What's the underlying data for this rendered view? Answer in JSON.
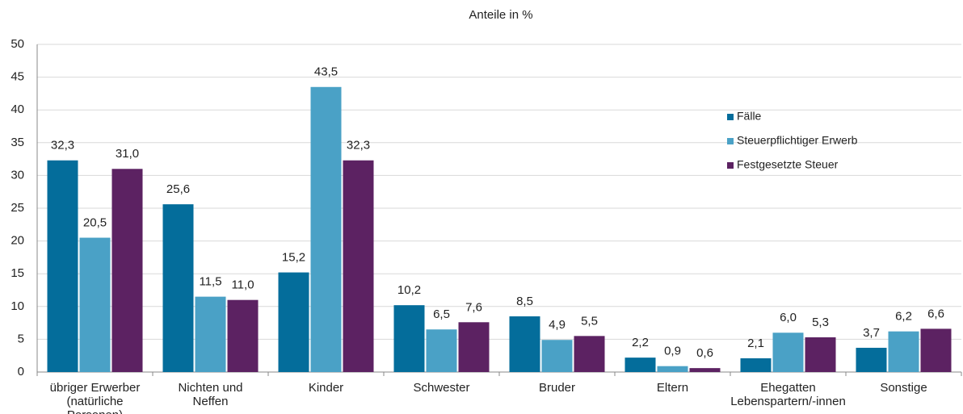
{
  "chart_data": {
    "type": "bar",
    "title": "Anteile in %",
    "categories": [
      "übriger Erwerber\n(natürliche Personen)",
      "Nichten und\nNeffen",
      "Kinder",
      "Schwester",
      "Bruder",
      "Eltern",
      "Ehegatten\nLebenspartern/-innen",
      "Sonstige"
    ],
    "series": [
      {
        "name": "Fälle",
        "color": "#046d9b",
        "values": [
          32.3,
          25.6,
          15.2,
          10.2,
          8.5,
          2.2,
          2.1,
          3.7
        ],
        "value_labels": [
          "32,3",
          "25,6",
          "15,2",
          "10,2",
          "8,5",
          "2,2",
          "2,1",
          "3,7"
        ]
      },
      {
        "name": "Steuerpflichtiger Erwerb",
        "color": "#4aa1c6",
        "values": [
          20.5,
          11.5,
          43.5,
          6.5,
          4.9,
          0.9,
          6.0,
          6.2
        ],
        "value_labels": [
          "20,5",
          "11,5",
          "43,5",
          "6,5",
          "4,9",
          "0,9",
          "6,0",
          "6,2"
        ]
      },
      {
        "name": "Festgesetzte Steuer",
        "color": "#5c2262",
        "values": [
          31.0,
          11.0,
          32.3,
          7.6,
          5.5,
          0.6,
          5.3,
          6.6
        ],
        "value_labels": [
          "31,0",
          "11,0",
          "32,3",
          "7,6",
          "5,5",
          "0,6",
          "5,3",
          "6,6"
        ]
      }
    ],
    "ylim": [
      0,
      50
    ],
    "yticks": [
      0,
      5,
      10,
      15,
      20,
      25,
      30,
      35,
      40,
      45,
      50
    ],
    "grid": true,
    "legend": "upper right"
  }
}
